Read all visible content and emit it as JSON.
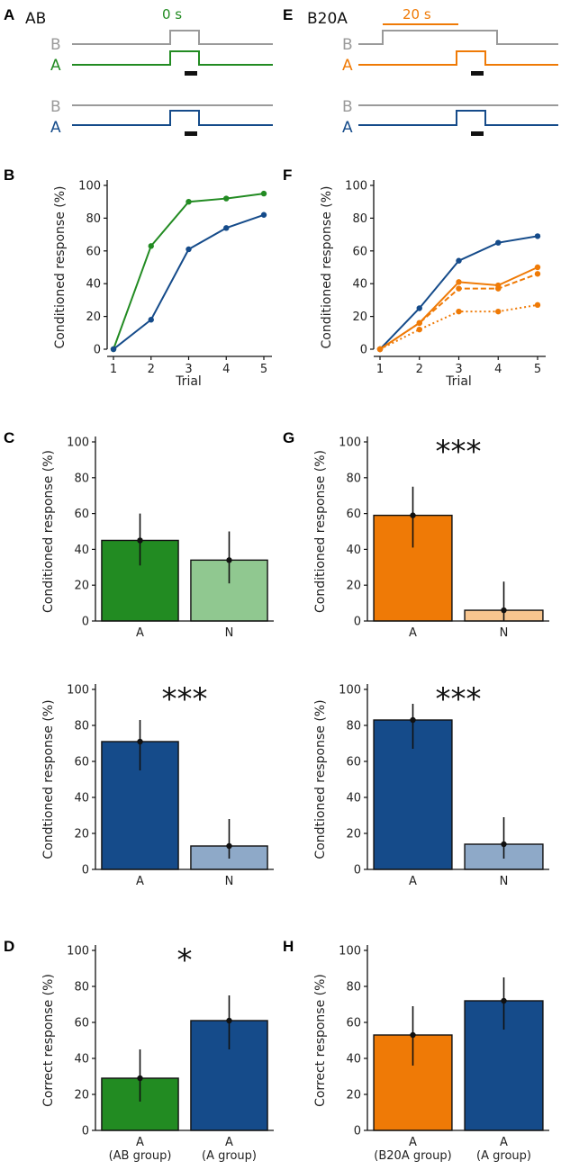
{
  "colors": {
    "green": "#228b22",
    "green_light": "#90c890",
    "blue": "#154b8a",
    "blue_light": "#8ea9c8",
    "orange": "#ef7a06",
    "orange_light": "#f7c58f",
    "gray": "#9a9a9a",
    "black": "#111111"
  },
  "panel_labels": {
    "A": "A",
    "B": "B",
    "C": "C",
    "D": "D",
    "E": "E",
    "F": "F",
    "G": "G",
    "H": "H"
  },
  "schematic": {
    "left_title": "AB",
    "left_delay": "0 s",
    "right_title": "B20A",
    "right_delay": "20 s",
    "label_B": "B",
    "label_A": "A"
  },
  "chart_data": [
    {
      "id": "B",
      "type": "line",
      "xlabel": "Trial",
      "ylabel": "Conditioned response (%)",
      "x": [
        1,
        2,
        3,
        4,
        5
      ],
      "ylim": [
        0,
        100
      ],
      "yticks": [
        "0",
        "20",
        "40",
        "60",
        "80",
        "100"
      ],
      "xticks": [
        "1",
        "2",
        "3",
        "4",
        "5"
      ],
      "series": [
        {
          "name": "AB",
          "color": "green",
          "dash": "solid",
          "values": [
            0,
            63,
            90,
            92,
            95
          ]
        },
        {
          "name": "A",
          "color": "blue",
          "dash": "solid",
          "values": [
            0,
            18,
            61,
            74,
            82
          ]
        }
      ]
    },
    {
      "id": "F",
      "type": "line",
      "xlabel": "Trial",
      "ylabel": "Conditioned response (%)",
      "x": [
        1,
        2,
        3,
        4,
        5
      ],
      "ylim": [
        0,
        100
      ],
      "yticks": [
        "0",
        "20",
        "40",
        "60",
        "80",
        "100"
      ],
      "xticks": [
        "1",
        "2",
        "3",
        "4",
        "5"
      ],
      "series": [
        {
          "name": "A",
          "color": "blue",
          "dash": "solid",
          "values": [
            0,
            25,
            54,
            65,
            69
          ]
        },
        {
          "name": "B20A",
          "color": "orange",
          "dash": "solid",
          "values": [
            0,
            16,
            41,
            39,
            50
          ]
        },
        {
          "name": "B20A dashed",
          "color": "orange",
          "dash": "dashed",
          "values": [
            0,
            16,
            37,
            37,
            46
          ]
        },
        {
          "name": "B20A dotted",
          "color": "orange",
          "dash": "dotted",
          "values": [
            0,
            12,
            23,
            23,
            27
          ]
        }
      ]
    },
    {
      "id": "C1",
      "type": "bar",
      "ylabel": "Conditioned response (%)",
      "ylim": [
        0,
        100
      ],
      "yticks": [
        "0",
        "20",
        "40",
        "60",
        "80",
        "100"
      ],
      "categories": [
        "A",
        "N"
      ],
      "category_sub": [
        "",
        ""
      ],
      "values": [
        45,
        34
      ],
      "errors": [
        [
          31,
          60
        ],
        [
          21,
          50
        ]
      ],
      "bar_colors": [
        "green",
        "green_light"
      ],
      "significance": ""
    },
    {
      "id": "C2",
      "type": "bar",
      "ylabel": "Condtioned response (%)",
      "ylim": [
        0,
        100
      ],
      "yticks": [
        "0",
        "20",
        "40",
        "60",
        "80",
        "100"
      ],
      "categories": [
        "A",
        "N"
      ],
      "category_sub": [
        "",
        ""
      ],
      "values": [
        71,
        13
      ],
      "errors": [
        [
          55,
          83
        ],
        [
          6,
          28
        ]
      ],
      "bar_colors": [
        "blue",
        "blue_light"
      ],
      "significance": "***"
    },
    {
      "id": "D",
      "type": "bar",
      "ylabel": "Correct response (%)",
      "ylim": [
        0,
        100
      ],
      "yticks": [
        "0",
        "20",
        "40",
        "60",
        "80",
        "100"
      ],
      "categories": [
        "A",
        "A"
      ],
      "category_sub": [
        "(AB group)",
        "(A group)"
      ],
      "values": [
        29,
        61
      ],
      "errors": [
        [
          16,
          45
        ],
        [
          45,
          75
        ]
      ],
      "bar_colors": [
        "green",
        "blue"
      ],
      "significance": "*"
    },
    {
      "id": "G1",
      "type": "bar",
      "ylabel": "Conditioned response (%)",
      "ylim": [
        0,
        100
      ],
      "yticks": [
        "0",
        "20",
        "40",
        "60",
        "80",
        "100"
      ],
      "categories": [
        "A",
        "N"
      ],
      "category_sub": [
        "",
        ""
      ],
      "values": [
        59,
        6
      ],
      "errors": [
        [
          41,
          75
        ],
        [
          0,
          22
        ]
      ],
      "bar_colors": [
        "orange",
        "orange_light"
      ],
      "significance": "***"
    },
    {
      "id": "G2",
      "type": "bar",
      "ylabel": "Condtioned response (%)",
      "ylim": [
        0,
        100
      ],
      "yticks": [
        "0",
        "20",
        "40",
        "60",
        "80",
        "100"
      ],
      "categories": [
        "A",
        "N"
      ],
      "category_sub": [
        "",
        ""
      ],
      "values": [
        83,
        14
      ],
      "errors": [
        [
          67,
          92
        ],
        [
          6,
          29
        ]
      ],
      "bar_colors": [
        "blue",
        "blue_light"
      ],
      "significance": "***"
    },
    {
      "id": "H",
      "type": "bar",
      "ylabel": "Correct response (%)",
      "ylim": [
        0,
        100
      ],
      "yticks": [
        "0",
        "20",
        "40",
        "60",
        "80",
        "100"
      ],
      "categories": [
        "A",
        "A"
      ],
      "category_sub": [
        "(B20A group)",
        "(A group)"
      ],
      "values": [
        53,
        72
      ],
      "errors": [
        [
          36,
          69
        ],
        [
          56,
          85
        ]
      ],
      "bar_colors": [
        "orange",
        "blue"
      ],
      "significance": ""
    }
  ]
}
